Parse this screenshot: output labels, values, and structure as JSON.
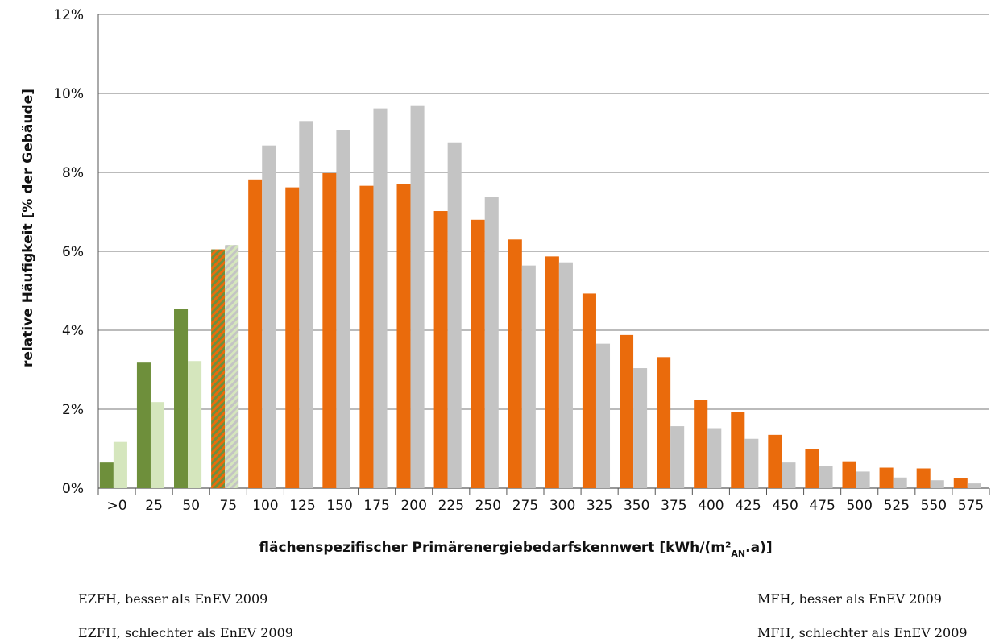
{
  "chart_data": {
    "type": "bar",
    "ylabel": "relative Häufigkeit [% der Gebäude]",
    "xlabel": "flächenspezifischer Primärenergiebedarfskennwert [kWh/(m²",
    "xlabel_sub": "AN",
    "xlabel_end": ".a)]",
    "ylim": [
      0,
      12
    ],
    "y_ticks": [
      "0%",
      "2%",
      "4%",
      "6%",
      "8%",
      "10%",
      "12%"
    ],
    "grid": true,
    "categories": [
      ">0",
      "25",
      "50",
      "75",
      "100",
      "125",
      "150",
      "175",
      "200",
      "225",
      "250",
      "275",
      "300",
      "325",
      "350",
      "375",
      "400",
      "425",
      "450",
      "475",
      "500",
      "525",
      "550",
      "575"
    ],
    "series": [
      {
        "values": [
          0.65,
          3.18,
          4.55,
          6.05,
          7.82,
          7.62,
          7.98,
          7.66,
          7.7,
          7.02,
          6.8,
          6.3,
          5.87,
          4.93,
          3.88,
          3.32,
          2.24,
          1.92,
          1.35,
          0.98,
          0.68,
          0.52,
          0.5,
          0.26
        ],
        "styles": [
          "dark-green",
          "dark-green",
          "dark-green",
          "hatch-dark",
          "orange",
          "orange",
          "orange",
          "orange",
          "orange",
          "orange",
          "orange",
          "orange",
          "orange",
          "orange",
          "orange",
          "orange",
          "orange",
          "orange",
          "orange",
          "orange",
          "orange",
          "orange",
          "orange",
          "orange"
        ]
      },
      {
        "values": [
          1.17,
          2.18,
          3.22,
          6.16,
          8.68,
          9.3,
          9.08,
          9.62,
          9.7,
          8.76,
          7.37,
          5.64,
          5.72,
          3.66,
          3.04,
          1.57,
          1.52,
          1.25,
          0.65,
          0.57,
          0.42,
          0.27,
          0.2,
          0.12
        ],
        "styles": [
          "light-green",
          "light-green",
          "light-green",
          "hatch-light",
          "grey",
          "grey",
          "grey",
          "grey",
          "grey",
          "grey",
          "grey",
          "grey",
          "grey",
          "grey",
          "grey",
          "grey",
          "grey",
          "grey",
          "grey",
          "grey",
          "grey",
          "grey",
          "grey",
          "grey"
        ]
      }
    ],
    "colors": {
      "dark-green": "#6e8f3b",
      "light-green": "#d5e6bd",
      "orange": "#ea6b0c",
      "grey": "#c4c4c4",
      "grid": "#777777"
    },
    "legend": [
      "EZFH, besser als EnEV 2009",
      "MFH, besser als EnEV 2009",
      "EZFH, schlechter als EnEV 2009",
      "MFH, schlechter als EnEV 2009"
    ]
  }
}
